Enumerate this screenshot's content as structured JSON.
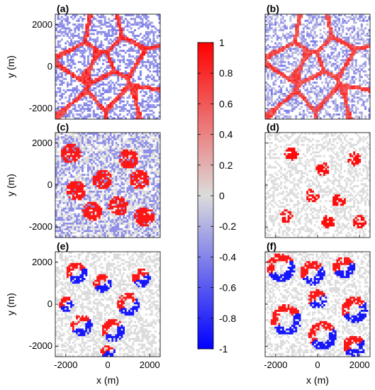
{
  "chart_data": {
    "type": "heatmap",
    "xlabel": "x (m)",
    "ylabel": "y (m)",
    "xlim": [
      -2500,
      2500
    ],
    "ylim": [
      -2500,
      2500
    ],
    "xticks": [
      -2000,
      0,
      2000
    ],
    "yticks": [
      2000,
      0,
      -2000
    ],
    "xtick_labels": [
      "-2000",
      "0",
      "2000"
    ],
    "ytick_labels": [
      "2000",
      "0",
      "-2000"
    ],
    "panels": [
      {
        "label": "(a)",
        "pattern": "cellular-network"
      },
      {
        "label": "(b)",
        "pattern": "cellular-network-faint"
      },
      {
        "label": "(c)",
        "pattern": "large-clusters-red-blue"
      },
      {
        "label": "(d)",
        "pattern": "sparse-red-patches"
      },
      {
        "label": "(e)",
        "pattern": "isolated-rings-red-blue"
      },
      {
        "label": "(f)",
        "pattern": "large-rings-red-blue"
      }
    ],
    "colorbar": {
      "min": -1,
      "max": 1,
      "ticks": [
        1,
        0.8,
        0.6,
        0.4,
        0.2,
        0,
        -0.2,
        -0.4,
        -0.6,
        -0.8,
        -1
      ],
      "tick_labels": [
        "1",
        "0.8",
        "0.6",
        "0.4",
        "0.2",
        "0",
        "-0.2",
        "-0.4",
        "-0.6",
        "-0.8",
        "-1"
      ],
      "colors": {
        "low": "#0000ff",
        "mid": "#dcdcdc",
        "high": "#ff0000"
      }
    },
    "grid": false,
    "legend": "colorbar-center"
  }
}
